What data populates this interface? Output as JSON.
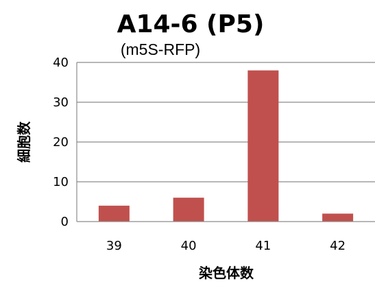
{
  "chart_data": {
    "type": "bar",
    "title": "A14-6 (P5)",
    "subtitle": "(m5S-RFP)",
    "xlabel": "染色体数",
    "ylabel": "細胞数",
    "categories": [
      "39",
      "40",
      "41",
      "42"
    ],
    "values": [
      4,
      6,
      38,
      2
    ],
    "ylim": [
      0,
      40
    ],
    "yticks": [
      "0",
      "10",
      "20",
      "30",
      "40"
    ],
    "grid": true,
    "legend": "none",
    "colors": {
      "bar": "#c0504d",
      "grid": "#8c8c8c"
    }
  }
}
